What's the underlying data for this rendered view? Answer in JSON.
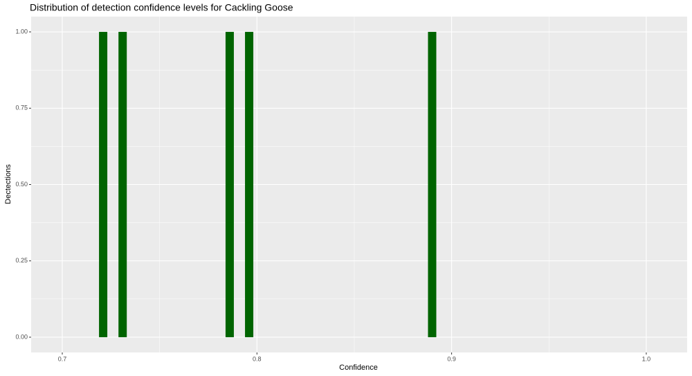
{
  "chart_data": {
    "type": "bar",
    "title": "Distribution of detection confidence levels for Cackling Goose",
    "x_label": "Confidence",
    "y_label": "Dectections",
    "x": [
      0.721,
      0.731,
      0.786,
      0.796,
      0.89
    ],
    "values": [
      1,
      1,
      1,
      1,
      1
    ],
    "color": "#006400",
    "xlim": [
      0.684,
      1.021
    ],
    "xticks": [
      0.7,
      0.8,
      0.9,
      {
        "value": 1,
        "label": "1.0"
      }
    ],
    "ylim": [
      -0.05,
      1.05
    ],
    "yticks": [
      {
        "value": 0,
        "label": "0.00"
      },
      0.25,
      {
        "value": 0.5,
        "label": "0.50"
      },
      0.75,
      {
        "value": 1,
        "label": "1.00"
      }
    ],
    "grid": true
  }
}
